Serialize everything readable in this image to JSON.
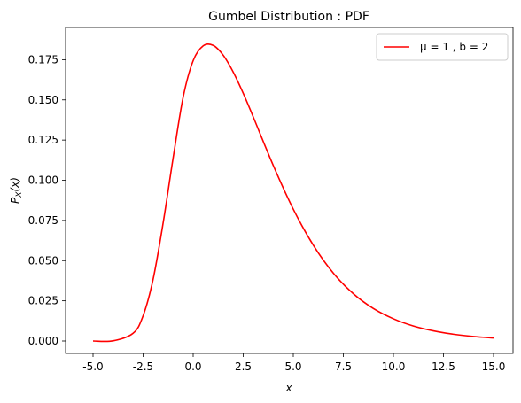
{
  "chart_data": {
    "type": "line",
    "title": "Gumbel Distribution : PDF",
    "xlabel": "x",
    "ylabel": "P_X(x)",
    "xlim": [
      -5.0,
      15.0
    ],
    "ylim": [
      0.0,
      0.175
    ],
    "x_ticks": [
      "-5.0",
      "-2.5",
      "0.0",
      "2.5",
      "5.0",
      "7.5",
      "10.0",
      "12.5",
      "15.0"
    ],
    "y_ticks": [
      "0.000",
      "0.025",
      "0.050",
      "0.075",
      "0.100",
      "0.125",
      "0.150",
      "0.175"
    ],
    "grid": false,
    "legend_position": "top-right",
    "series": [
      {
        "name": "μ = 1 , b = 2",
        "color": "#ff0000",
        "x": [
          -5.0,
          -4.0,
          -3.0,
          -2.5,
          -2.0,
          -1.5,
          -1.0,
          -0.5,
          0.0,
          0.5,
          1.0,
          1.5,
          2.0,
          2.5,
          3.0,
          4.0,
          5.0,
          6.0,
          7.0,
          8.0,
          9.0,
          10.0,
          11.0,
          12.0,
          13.0,
          14.0,
          15.0
        ],
        "values": [
          0.0,
          0.0001,
          0.0048,
          0.0157,
          0.0384,
          0.0734,
          0.1139,
          0.1517,
          0.1744,
          0.1836,
          0.1839,
          0.1778,
          0.1673,
          0.1541,
          0.1394,
          0.1092,
          0.082,
          0.0596,
          0.0422,
          0.0294,
          0.0202,
          0.0138,
          0.0093,
          0.0063,
          0.0042,
          0.0028,
          0.0019
        ]
      }
    ]
  }
}
